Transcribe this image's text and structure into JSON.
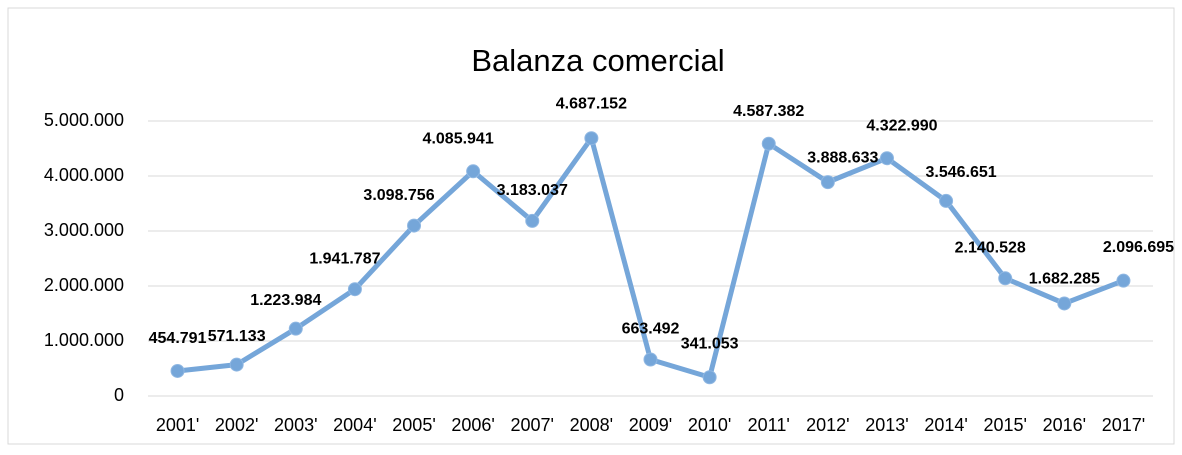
{
  "chart_data": {
    "type": "line",
    "title": "Balanza comercial",
    "categories": [
      "2001'",
      "2002'",
      "2003'",
      "2004'",
      "2005'",
      "2006'",
      "2007'",
      "2008'",
      "2009'",
      "2010'",
      "2011'",
      "2012'",
      "2013'",
      "2014'",
      "2015'",
      "2016'",
      "2017'"
    ],
    "series": [
      {
        "name": "Balanza comercial",
        "color": "#75a6d9",
        "values": [
          454791,
          571133,
          1223984,
          1941787,
          3098756,
          4085941,
          3183037,
          4687152,
          663492,
          341053,
          4587382,
          3888633,
          4322990,
          3546651,
          2140528,
          1682285,
          2096695
        ],
        "value_labels": [
          "454.791",
          "571.133",
          "1.223.984",
          "1.941.787",
          "3.098.756",
          "4.085.941",
          "3.183.037",
          "4.687.152",
          "663.492",
          "341.053",
          "4.587.382",
          "3.888.633",
          "4.322.990",
          "3.546.651",
          "2.140.528",
          "1.682.285",
          "2.096.695"
        ]
      }
    ],
    "ylim": [
      0,
      5000000
    ],
    "yticks": [
      0,
      {
        "value": 1000000,
        "label": "1.000.000"
      },
      {
        "value": 2000000,
        "label": "2.000.000"
      },
      {
        "value": 3000000,
        "label": "3.000.000"
      },
      {
        "value": 4000000,
        "label": "4.000.000"
      },
      {
        "value": 5000000,
        "label": "5.000.000"
      }
    ],
    "grid": true
  }
}
